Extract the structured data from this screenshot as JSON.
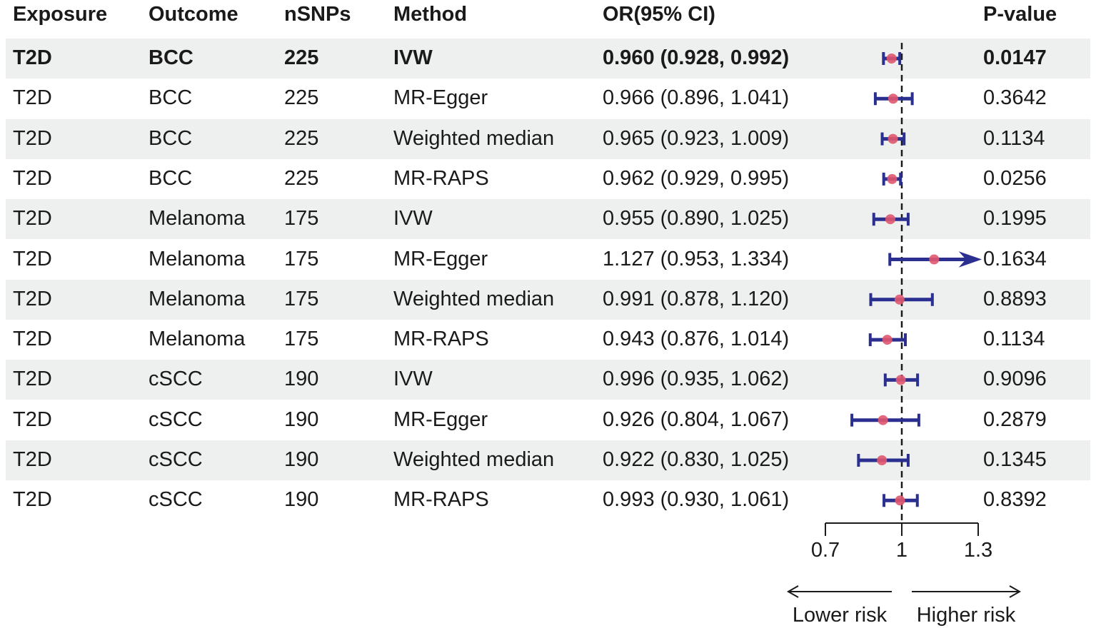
{
  "chart_data": {
    "type": "forest",
    "columns": [
      "Exposure",
      "Outcome",
      "nSNPs",
      "Method",
      "OR(95% CI)",
      "P-value"
    ],
    "rows": [
      {
        "exposure": "T2D",
        "outcome": "BCC",
        "nsnps": "225",
        "method": "IVW",
        "ci_text": "0.960 (0.928, 0.992)",
        "pval": "0.0147",
        "or": 0.96,
        "lo": 0.928,
        "hi": 0.992,
        "bold": true
      },
      {
        "exposure": "T2D",
        "outcome": "BCC",
        "nsnps": "225",
        "method": "MR-Egger",
        "ci_text": "0.966 (0.896, 1.041)",
        "pval": "0.3642",
        "or": 0.966,
        "lo": 0.896,
        "hi": 1.041,
        "bold": false
      },
      {
        "exposure": "T2D",
        "outcome": "BCC",
        "nsnps": "225",
        "method": "Weighted median",
        "ci_text": "0.965 (0.923, 1.009)",
        "pval": "0.1134",
        "or": 0.965,
        "lo": 0.923,
        "hi": 1.009,
        "bold": false
      },
      {
        "exposure": "T2D",
        "outcome": "BCC",
        "nsnps": "225",
        "method": "MR-RAPS",
        "ci_text": "0.962 (0.929, 0.995)",
        "pval": "0.0256",
        "or": 0.962,
        "lo": 0.929,
        "hi": 0.995,
        "bold": false
      },
      {
        "exposure": "T2D",
        "outcome": "Melanoma",
        "nsnps": "175",
        "method": "IVW",
        "ci_text": "0.955 (0.890, 1.025)",
        "pval": "0.1995",
        "or": 0.955,
        "lo": 0.89,
        "hi": 1.025,
        "bold": false
      },
      {
        "exposure": "T2D",
        "outcome": "Melanoma",
        "nsnps": "175",
        "method": "MR-Egger",
        "ci_text": "1.127 (0.953, 1.334)",
        "pval": "0.1634",
        "or": 1.127,
        "lo": 0.953,
        "hi": 1.334,
        "bold": false
      },
      {
        "exposure": "T2D",
        "outcome": "Melanoma",
        "nsnps": "175",
        "method": "Weighted median",
        "ci_text": "0.991 (0.878, 1.120)",
        "pval": "0.8893",
        "or": 0.991,
        "lo": 0.878,
        "hi": 1.12,
        "bold": false
      },
      {
        "exposure": "T2D",
        "outcome": "Melanoma",
        "nsnps": "175",
        "method": "MR-RAPS",
        "ci_text": "0.943 (0.876, 1.014)",
        "pval": "0.1134",
        "or": 0.943,
        "lo": 0.876,
        "hi": 1.014,
        "bold": false
      },
      {
        "exposure": "T2D",
        "outcome": "cSCC",
        "nsnps": "190",
        "method": "IVW",
        "ci_text": "0.996 (0.935, 1.062)",
        "pval": "0.9096",
        "or": 0.996,
        "lo": 0.935,
        "hi": 1.062,
        "bold": false
      },
      {
        "exposure": "T2D",
        "outcome": "cSCC",
        "nsnps": "190",
        "method": "MR-Egger",
        "ci_text": "0.926 (0.804, 1.067)",
        "pval": "0.2879",
        "or": 0.926,
        "lo": 0.804,
        "hi": 1.067,
        "bold": false
      },
      {
        "exposure": "T2D",
        "outcome": "cSCC",
        "nsnps": "190",
        "method": "Weighted median",
        "ci_text": "0.922 (0.830, 1.025)",
        "pval": "0.1345",
        "or": 0.922,
        "lo": 0.83,
        "hi": 1.025,
        "bold": false
      },
      {
        "exposure": "T2D",
        "outcome": "cSCC",
        "nsnps": "190",
        "method": "MR-RAPS",
        "ci_text": "0.993 (0.930, 1.061)",
        "pval": "0.8392",
        "or": 0.993,
        "lo": 0.93,
        "hi": 1.061,
        "bold": false
      }
    ],
    "xlim": [
      0.7,
      1.3
    ],
    "x_ticks": [
      "0.7",
      "1",
      "1.3"
    ],
    "reference_line": 1,
    "clip_arrow": "right",
    "direction_labels": {
      "left": "Lower risk",
      "right": "Higher risk"
    },
    "colors": {
      "ci_line": "#2b2f8f",
      "point": "#e0566f",
      "row_shade": "#eef0ef",
      "text": "#1a1a1a"
    }
  }
}
